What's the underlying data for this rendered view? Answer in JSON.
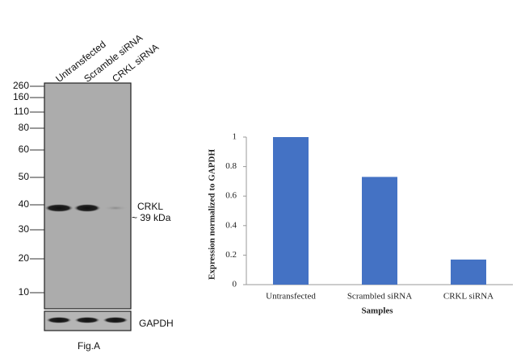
{
  "blot": {
    "lanes": [
      "Untransfected",
      "Scramble siRNA",
      "CRKL siRNA"
    ],
    "markers": [
      260,
      160,
      110,
      80,
      60,
      50,
      40,
      30,
      20,
      10
    ],
    "band_label": "CRKL",
    "band_size": "~ 39 kDa",
    "loading_control": "GAPDH",
    "caption": "Fig.A"
  },
  "chart_data": {
    "type": "bar",
    "categories": [
      "Untransfected",
      "Scrambled siRNA",
      "CRKL siRNA"
    ],
    "values": [
      1,
      0.73,
      0.17
    ],
    "color": "#4472c4",
    "ylim": [
      0,
      1
    ],
    "yticks": [
      0,
      0.2,
      0.4,
      0.6,
      0.8,
      1
    ],
    "ylabel": "Expression normalized to GAPDH",
    "xlabel": "Samples",
    "grid": false
  }
}
